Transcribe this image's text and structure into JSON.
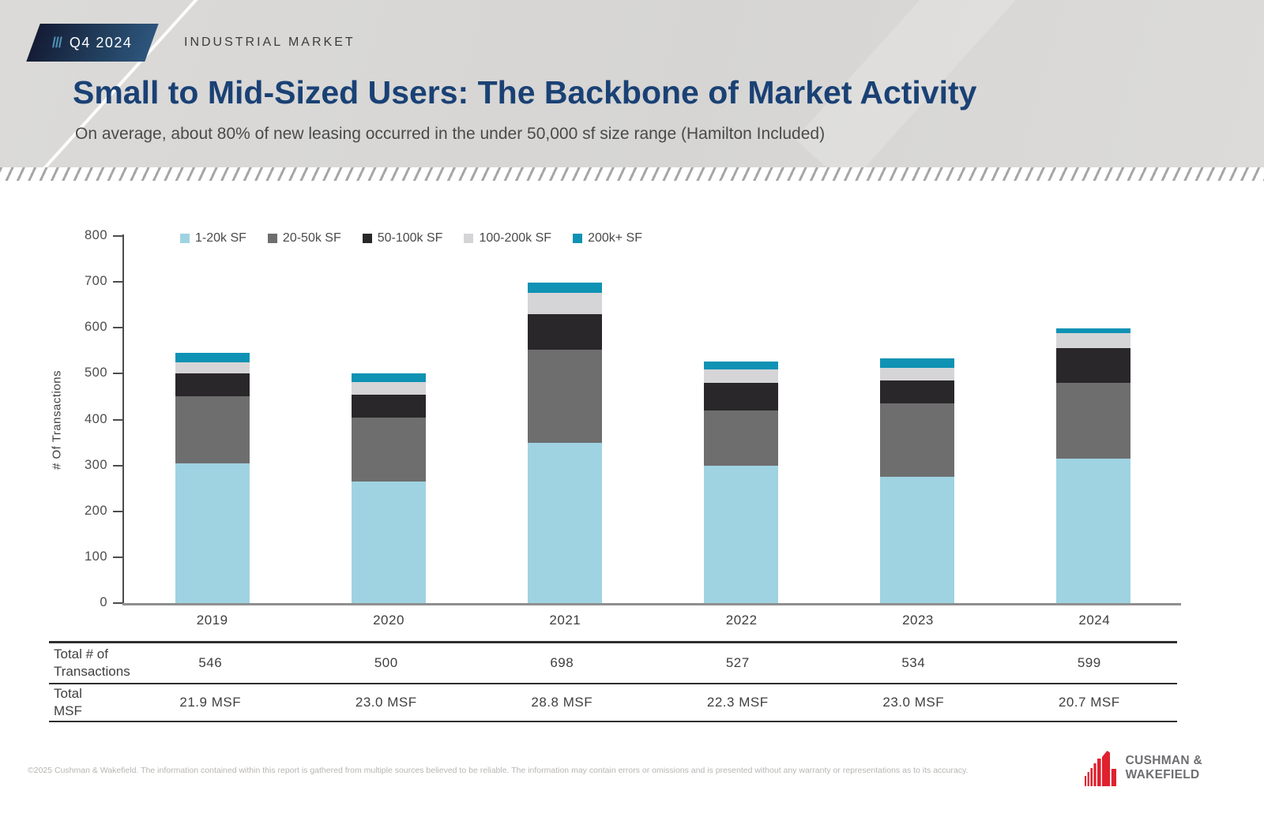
{
  "header": {
    "badge_slashes": "///",
    "badge_label": "Q4 2024",
    "kicker": "INDUSTRIAL MARKET",
    "title": "Small to Mid-Sized Users: The Backbone of Market Activity",
    "subtitle": "On average, about 80% of new leasing occurred in the under 50,000 sf size range (Hamilton Included)"
  },
  "chart_data": {
    "type": "bar",
    "stacked": true,
    "ylabel": "# Of Transactions",
    "ylim": [
      0,
      800
    ],
    "ytick_step": 100,
    "grid": false,
    "legend_position": "top",
    "categories": [
      "2019",
      "2020",
      "2021",
      "2022",
      "2023",
      "2024"
    ],
    "series": [
      {
        "name": "1-20k SF",
        "color": "#9fd3e2",
        "values": [
          305,
          265,
          350,
          300,
          275,
          315
        ]
      },
      {
        "name": "20-50k SF",
        "color": "#6e6e6e",
        "values": [
          145,
          140,
          202,
          120,
          160,
          165
        ]
      },
      {
        "name": "50-100k SF",
        "color": "#2a272b",
        "values": [
          50,
          50,
          78,
          60,
          50,
          76
        ]
      },
      {
        "name": "100-200k SF",
        "color": "#d5d5d7",
        "values": [
          25,
          27,
          46,
          30,
          27,
          33
        ]
      },
      {
        "name": "200k+ SF",
        "color": "#0f92b4",
        "values": [
          21,
          18,
          22,
          17,
          22,
          10
        ]
      }
    ],
    "totals": [
      546,
      500,
      698,
      527,
      534,
      599
    ]
  },
  "table": {
    "rows": [
      {
        "label_lines": [
          "Total # of",
          "Transactions"
        ],
        "values": [
          "546",
          "500",
          "698",
          "527",
          "534",
          "599"
        ]
      },
      {
        "label_lines": [
          "Total",
          "MSF"
        ],
        "values": [
          "21.9 MSF",
          "23.0 MSF",
          "28.8 MSF",
          "22.3 MSF",
          "23.0 MSF",
          "20.7 MSF"
        ]
      }
    ]
  },
  "footer": {
    "disclaimer": "©2025 Cushman & Wakefield. The information contained within this report is gathered from multiple sources believed to be reliable. The information may contain errors or omissions and is presented without any warranty or representations as to its accuracy.",
    "logo_line1": "CUSHMAN &",
    "logo_line2": "WAKEFIELD"
  },
  "colors": {
    "brand_navy": "#1a4175",
    "brand_red": "#e0202e",
    "logo_gray": "#6d6e71",
    "header_bg": "#d8d7d5"
  }
}
